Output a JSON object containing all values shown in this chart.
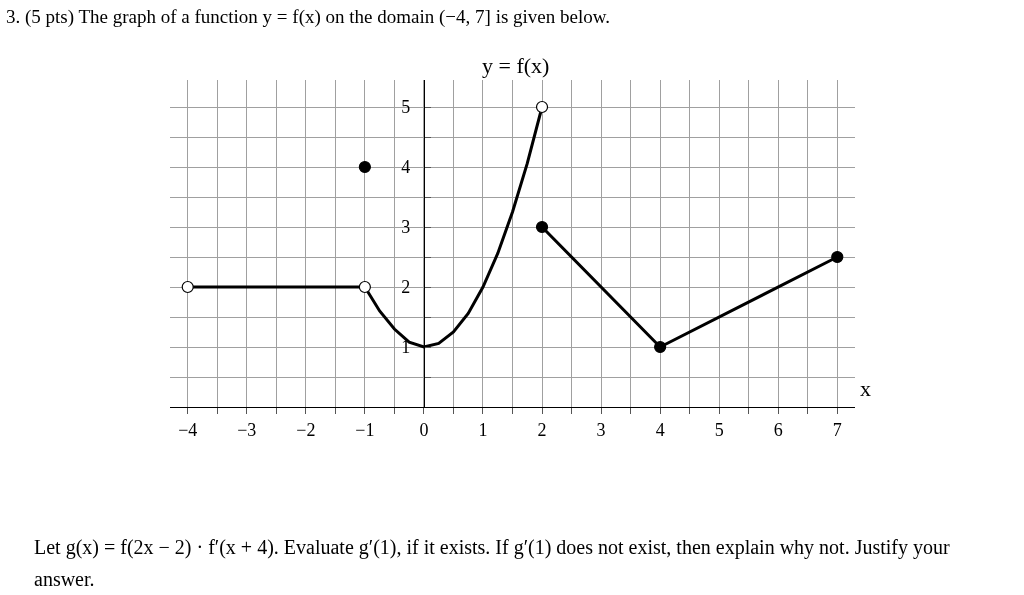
{
  "chart_data": {
    "type": "line",
    "title": "3. (5 pts) The graph of a function y = f(x) on the domain (−4, 7] is given below.",
    "xlabel": "x",
    "annotations": [
      "y = f(x)",
      "Let g(x) = f(2x − 2) · f′(x + 4). Evaluate g′(1), if it exists. If g′(1) does not exist, then explain why not. Justify your answer."
    ],
    "series": [
      {
        "type": "line",
        "marker": "none",
        "color": "#000000",
        "x": [
          -4,
          -1
        ],
        "values": [
          2,
          2
        ]
      },
      {
        "type": "line",
        "marker": "none",
        "color": "#000000",
        "x": [
          -1,
          -0.75,
          -0.5,
          -0.25,
          0,
          0.25,
          0.5,
          0.75,
          1,
          1.25,
          1.5,
          1.75,
          2
        ],
        "values": [
          2,
          1.6,
          1.3,
          1.08,
          1,
          1.06,
          1.25,
          1.56,
          2,
          2.56,
          3.25,
          4.06,
          5
        ]
      },
      {
        "type": "line",
        "marker": "none",
        "color": "#000000",
        "x": [
          2,
          4,
          7
        ],
        "values": [
          3,
          1,
          2.5
        ]
      },
      {
        "type": "scatter",
        "marker": "circle",
        "color": "#000000",
        "x": [
          -1,
          2,
          4,
          7
        ],
        "values": [
          4,
          3,
          1,
          2.5
        ]
      },
      {
        "type": "scatter",
        "marker": "circle",
        "color": "#ffffff",
        "x": [
          -4,
          -1,
          2
        ],
        "values": [
          2,
          2,
          5
        ]
      }
    ],
    "xlim": [
      -4.3,
      7.3
    ],
    "ylim": [
      0,
      5.45
    ],
    "xticks": [
      -4,
      {
        "value": -3.5,
        "label": null
      },
      -3,
      {
        "value": -2.5,
        "label": null
      },
      -2,
      {
        "value": -1.5,
        "label": null
      },
      -1,
      {
        "value": -0.5,
        "label": null
      },
      0,
      {
        "value": 0.5,
        "label": null
      },
      1,
      {
        "value": 1.5,
        "label": null
      },
      2,
      {
        "value": 2.5,
        "label": null
      },
      3,
      {
        "value": 3.5,
        "label": null
      },
      4,
      {
        "value": 4.5,
        "label": null
      },
      5,
      {
        "value": 5.5,
        "label": null
      },
      6,
      {
        "value": 6.5,
        "label": null
      },
      7
    ],
    "yticks": [
      {
        "value": 0.5,
        "label": null
      },
      1,
      {
        "value": 1.5,
        "label": null
      },
      2,
      {
        "value": 2.5,
        "label": null
      },
      3,
      {
        "value": 3.5,
        "label": null
      },
      4,
      {
        "value": 4.5,
        "label": null
      },
      5
    ],
    "grid": true,
    "line_style": "solid",
    "legend": false
  }
}
